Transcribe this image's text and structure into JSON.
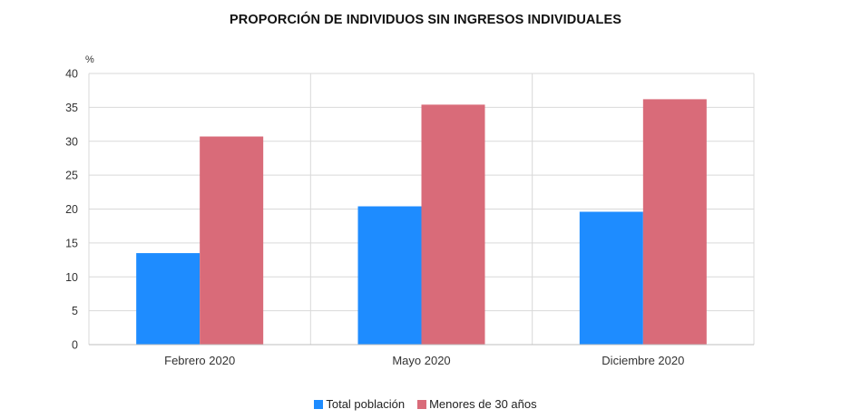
{
  "chart_data": {
    "type": "bar",
    "title": "PROPORCIÓN DE INDIVIDUOS SIN INGRESOS INDIVIDUALES",
    "ylabel": "%",
    "xlabel": "",
    "ylim": [
      0,
      40
    ],
    "yticks": [
      0,
      5,
      10,
      15,
      20,
      25,
      30,
      35,
      40
    ],
    "grid": true,
    "legend_position": "bottom",
    "categories": [
      "Febrero 2020",
      "Mayo 2020",
      "Diciembre 2020"
    ],
    "series": [
      {
        "name": "Total población",
        "color": "#1e8cff",
        "values": [
          13.5,
          20.4,
          19.6
        ]
      },
      {
        "name": "Menores de 30 años",
        "color": "#d96b79",
        "values": [
          30.7,
          35.4,
          36.2
        ]
      }
    ]
  }
}
